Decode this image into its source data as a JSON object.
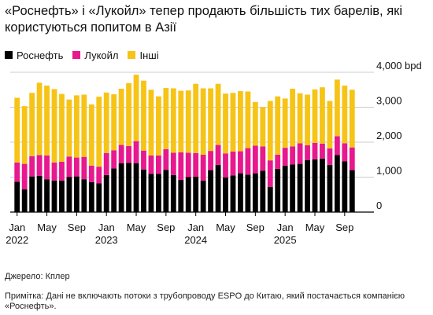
{
  "title": "«Роснефть» і «Лукойл» тепер продають більшість тих барелів, які користуються попитом в Азії",
  "source": "Джерело: Кплер",
  "note": "Примітка: Дані не включають потоки з трубопроводу ESPO до Китаю, який постачається компанією «Роснефть».",
  "colors": {
    "rosneft": "#000000",
    "lukoil": "#e8188e",
    "other": "#f6c417",
    "axis": "#000000",
    "grid": "#cccccc"
  },
  "chart_data": {
    "type": "bar",
    "stacked": true,
    "title": "«Роснефть» і «Лукойл» тепер продають більшість тих барелів, які користуються попитом в Азії",
    "ylabel": "",
    "y_unit": "bpd",
    "ylim": [
      0,
      4000
    ],
    "yticks": [
      {
        "value": 4000,
        "label": "4,000"
      },
      {
        "value": 3000,
        "label": "3,000"
      },
      {
        "value": 2000,
        "label": "2,000"
      },
      {
        "value": 1000,
        "label": "1,000"
      },
      {
        "value": 0,
        "label": "0"
      }
    ],
    "grid": true,
    "legend_position": "top-left",
    "x_ticks": [
      {
        "index": 0,
        "month": "Jan",
        "year": "2022"
      },
      {
        "index": 4,
        "month": "May",
        "year": ""
      },
      {
        "index": 8,
        "month": "Sep",
        "year": ""
      },
      {
        "index": 12,
        "month": "Jan",
        "year": "2023"
      },
      {
        "index": 16,
        "month": "May",
        "year": ""
      },
      {
        "index": 20,
        "month": "Sep",
        "year": ""
      },
      {
        "index": 24,
        "month": "Jan",
        "year": "2024"
      },
      {
        "index": 28,
        "month": "May",
        "year": ""
      },
      {
        "index": 32,
        "month": "Sep",
        "year": ""
      },
      {
        "index": 36,
        "month": "Jan",
        "year": "2025"
      },
      {
        "index": 40,
        "month": "May",
        "year": ""
      },
      {
        "index": 44,
        "month": "Sep",
        "year": ""
      }
    ],
    "categories": [
      "2022-01",
      "2022-02",
      "2022-03",
      "2022-04",
      "2022-05",
      "2022-06",
      "2022-07",
      "2022-08",
      "2022-09",
      "2022-10",
      "2022-11",
      "2022-12",
      "2023-01",
      "2023-02",
      "2023-03",
      "2023-04",
      "2023-05",
      "2023-06",
      "2023-07",
      "2023-08",
      "2023-09",
      "2023-10",
      "2023-11",
      "2023-12",
      "2024-01",
      "2024-02",
      "2024-03",
      "2024-04",
      "2024-05",
      "2024-06",
      "2024-07",
      "2024-08",
      "2024-09",
      "2024-10",
      "2024-11",
      "2024-12",
      "2025-01",
      "2025-02",
      "2025-03",
      "2025-04",
      "2025-05",
      "2025-06",
      "2025-07",
      "2025-08",
      "2025-09",
      "2025-10"
    ],
    "series": [
      {
        "name": "Роснефть",
        "color": "#000000",
        "values": [
          870,
          650,
          1020,
          1040,
          940,
          900,
          900,
          1000,
          1020,
          940,
          860,
          820,
          1060,
          1250,
          1400,
          1410,
          1400,
          1220,
          1090,
          1090,
          1210,
          1060,
          920,
          1000,
          1010,
          900,
          1200,
          1350,
          990,
          1050,
          1110,
          1070,
          1110,
          1180,
          720,
          1240,
          1330,
          1360,
          1380,
          1490,
          1510,
          1530,
          1350,
          1630,
          1450,
          1200
        ]
      },
      {
        "name": "Лукойл",
        "color": "#e8188e",
        "values": [
          550,
          730,
          580,
          590,
          680,
          520,
          540,
          590,
          540,
          640,
          470,
          480,
          630,
          520,
          520,
          480,
          630,
          540,
          530,
          530,
          590,
          640,
          790,
          700,
          680,
          740,
          550,
          570,
          690,
          680,
          630,
          760,
          790,
          700,
          760,
          400,
          510,
          520,
          590,
          420,
          470,
          430,
          470,
          540,
          520,
          650
        ]
      },
      {
        "name": "Інші",
        "color": "#f6c417",
        "values": [
          1850,
          1650,
          1810,
          2070,
          2000,
          2100,
          1940,
          1630,
          1780,
          1780,
          1750,
          2000,
          1730,
          1600,
          1610,
          1800,
          1900,
          2000,
          1880,
          1690,
          1750,
          1840,
          1760,
          1780,
          1980,
          1900,
          1790,
          1750,
          1710,
          1680,
          1720,
          1620,
          1250,
          1120,
          1700,
          1670,
          1410,
          1650,
          1430,
          1450,
          1530,
          1610,
          1360,
          1620,
          1650,
          1650
        ]
      }
    ]
  }
}
